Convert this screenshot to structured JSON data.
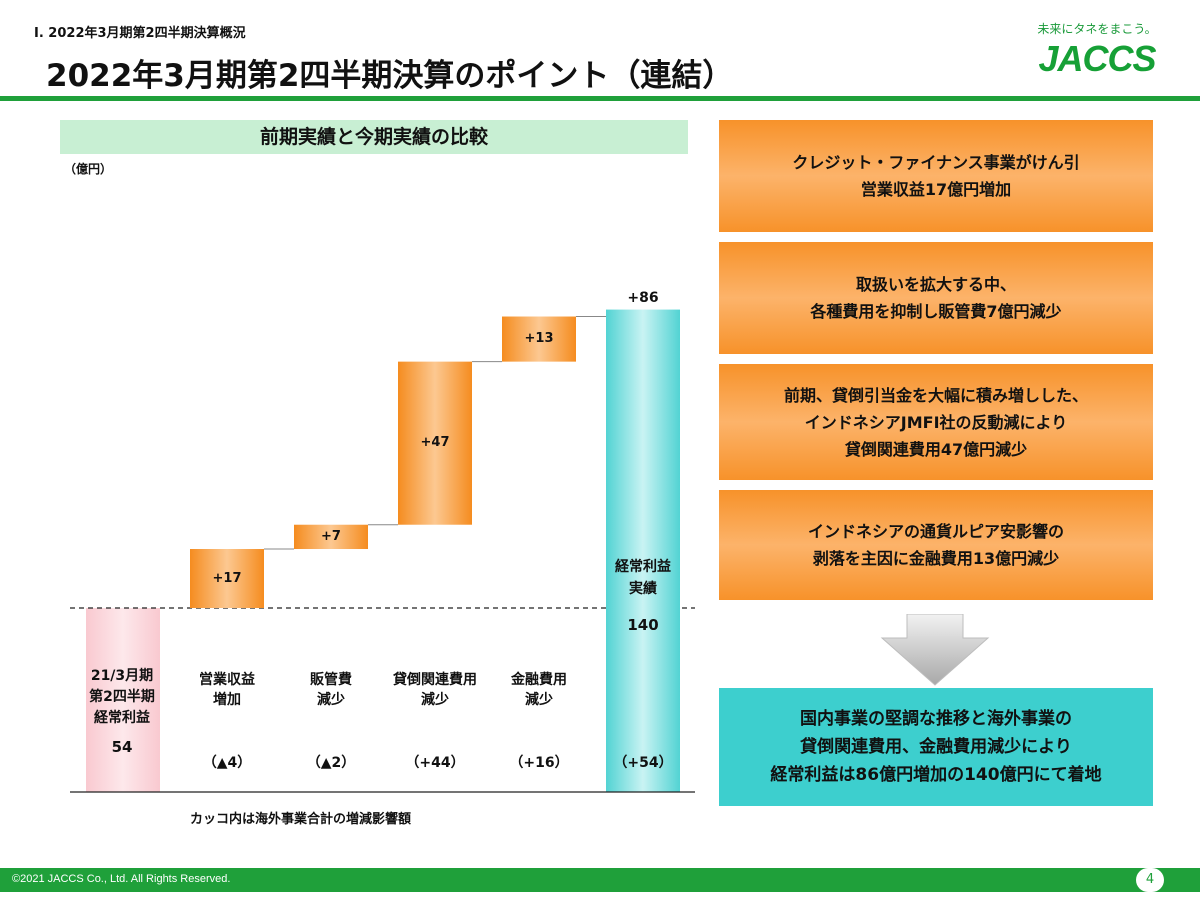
{
  "header": {
    "section_label": "Ⅰ. 2022年3月期第2四半期決算概況",
    "title": "2022年3月期第2四半期決算のポイント（連結）",
    "logo_tagline": "未来にタネをまこう。",
    "logo_text": "JACCS"
  },
  "chart": {
    "heading": "前期実績と今期実績の比較",
    "unit": "（億円）",
    "footnote": "カッコ内は海外事業合計の増減影響額"
  },
  "chart_data": {
    "type": "bar",
    "subtype": "waterfall",
    "start": {
      "label": "21/3月期\n第2四半期\n経常利益",
      "value": 54
    },
    "steps": [
      {
        "category": "営業収益\n増加",
        "delta": 17,
        "delta_label": "+17",
        "overseas_impact": "（▲4）"
      },
      {
        "category": "販管費\n減少",
        "delta": 7,
        "delta_label": "+7",
        "overseas_impact": "（▲2）"
      },
      {
        "category": "貸倒関連費用\n減少",
        "delta": 47,
        "delta_label": "+47",
        "overseas_impact": "（+44）"
      },
      {
        "category": "金融費用\n減少",
        "delta": 13,
        "delta_label": "+13",
        "overseas_impact": "（+16）"
      }
    ],
    "total": {
      "label": "経常利益\n実績",
      "value": 140,
      "change_label": "+86",
      "overseas_impact": "（+54）"
    },
    "colors": {
      "start": "#fbd3d9",
      "step": "#f7922a",
      "total": "#5ed8d8"
    }
  },
  "points": [
    "クレジット・ファイナンス事業がけん引\n営業収益17億円増加",
    "取扱いを拡大する中、\n各種費用を抑制し販管費7億円減少",
    "前期、貸倒引当金を大幅に積み増しした、\nインドネシアJMFI社の反動減により\n貸倒関連費用47億円減少",
    "インドネシアの通貨ルピア安影響の\n剥落を主因に金融費用13億円減少"
  ],
  "conclusion": "国内事業の堅調な推移と海外事業の\n貸倒関連費用、金融費用減少により\n経常利益は86億円増加の140億円にて着地",
  "footer": {
    "copyright": "©2021 JACCS Co., Ltd. All Rights Reserved.",
    "page": "4"
  },
  "colors": {
    "brand_green": "#1fa03a",
    "orange": "#f7922a",
    "teal": "#3dcfce"
  }
}
